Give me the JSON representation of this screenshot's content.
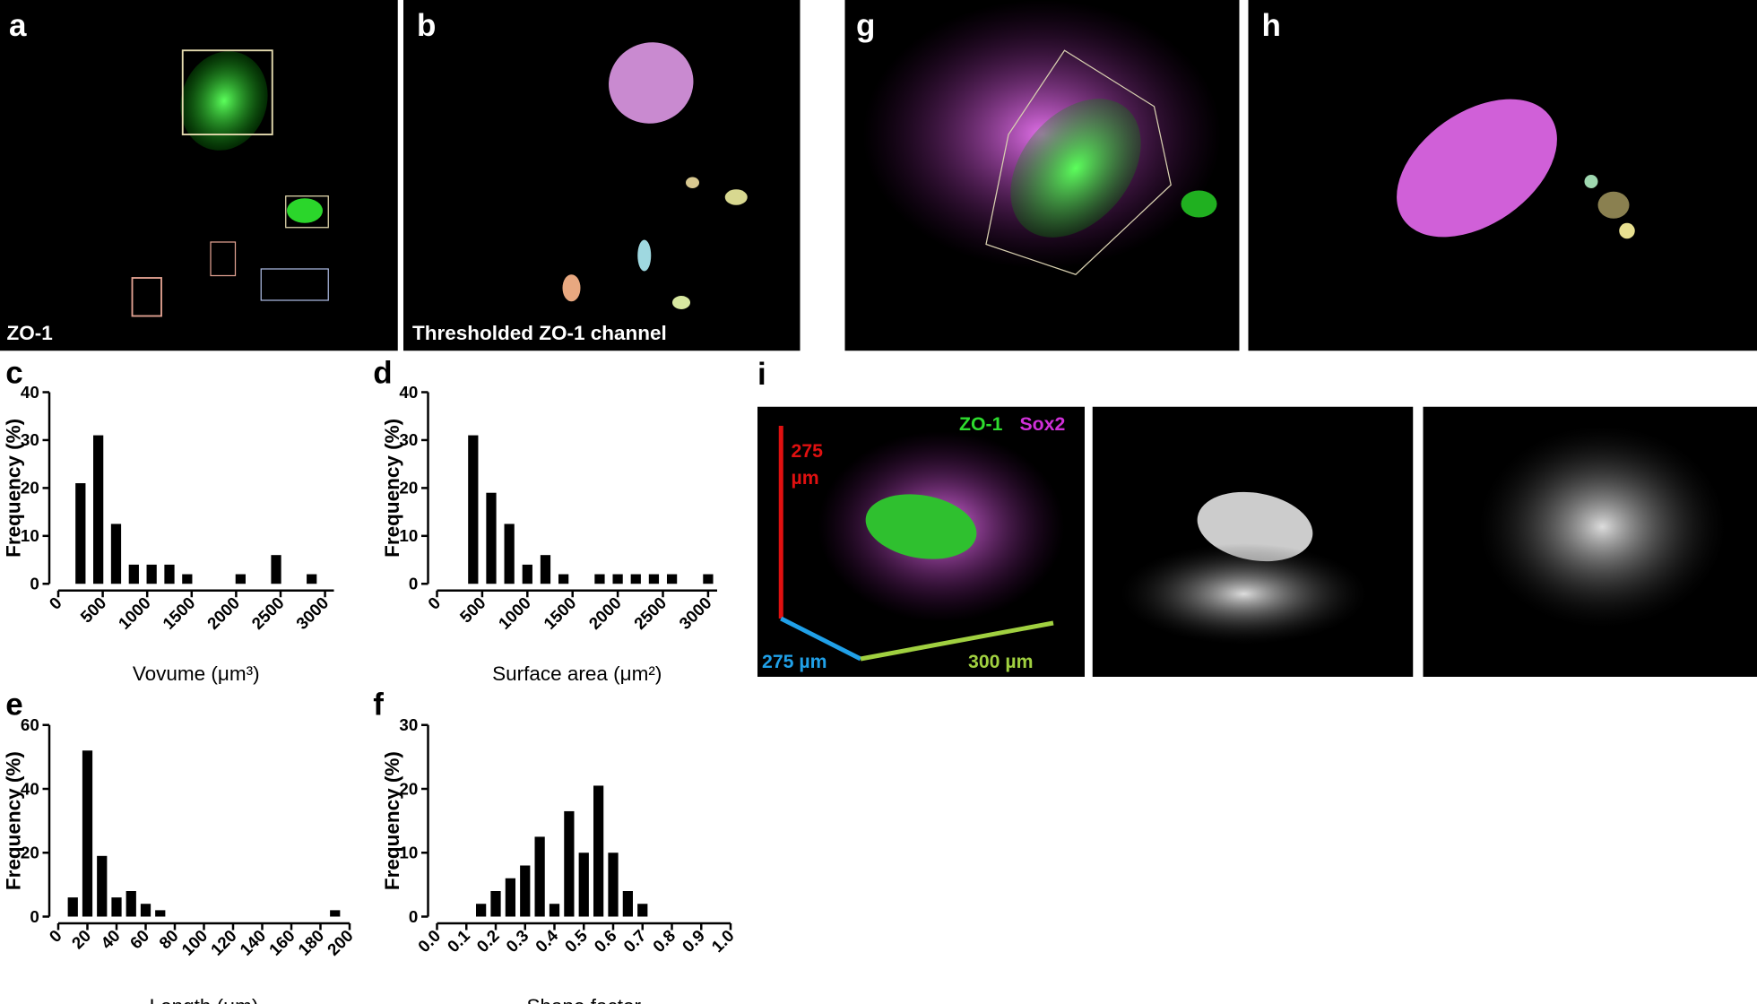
{
  "images": [
    {
      "label": "a",
      "caption": "ZO-1"
    },
    {
      "label": "b",
      "caption": "Thresholded ZO-1 channel"
    },
    {
      "label": "g"
    },
    {
      "label": "h"
    },
    {
      "label": "i",
      "channel_labels": [
        "ZO-1",
        "Sox2"
      ],
      "height_label": [
        "275",
        "µm"
      ],
      "depth_label": "275 µm",
      "width_label": "300 µm"
    }
  ],
  "chart_data": [
    {
      "type": "bar",
      "label": "c",
      "xlabel": "Vovume (μm³)",
      "ylabel": "Frequency (%)",
      "x": [
        250,
        450,
        650,
        850,
        1050,
        1250,
        1450,
        2050,
        2450,
        2850
      ],
      "values": [
        21,
        31,
        12.5,
        4,
        4,
        4,
        2,
        2,
        6,
        2
      ],
      "color": "#000000",
      "xlim": [
        0,
        3100
      ],
      "xticks": [
        0,
        500,
        1000,
        1500,
        2000,
        2500,
        3000
      ],
      "ylim": [
        0,
        40
      ],
      "yticks": [
        0,
        10,
        20,
        30,
        40
      ]
    },
    {
      "type": "bar",
      "label": "d",
      "xlabel": "Surface area (μm²)",
      "ylabel": "Frequency (%)",
      "x": [
        400,
        600,
        800,
        1000,
        1200,
        1400,
        1800,
        2000,
        2200,
        2400,
        2600,
        3000
      ],
      "values": [
        31,
        19,
        12.5,
        4,
        6,
        2,
        2,
        2,
        2,
        2,
        2,
        2
      ],
      "color": "#000000",
      "xlim": [
        0,
        3100
      ],
      "xticks": [
        0,
        500,
        1000,
        1500,
        2000,
        2500,
        3000
      ],
      "ylim": [
        0,
        40
      ],
      "yticks": [
        0,
        10,
        20,
        30,
        40
      ]
    },
    {
      "type": "bar",
      "label": "e",
      "xlabel": "Length (μm)",
      "ylabel": "Frequency (%)",
      "x": [
        10,
        20,
        30,
        40,
        50,
        60,
        70,
        190
      ],
      "values": [
        6,
        52,
        19,
        6,
        8,
        4,
        2,
        2
      ],
      "color": "#000000",
      "xlim": [
        0,
        200
      ],
      "xticks": [
        0,
        20,
        40,
        60,
        80,
        100,
        120,
        140,
        160,
        180,
        200
      ],
      "ylim": [
        0,
        60
      ],
      "yticks": [
        0,
        20,
        40,
        60
      ]
    },
    {
      "type": "bar",
      "label": "f",
      "xlabel": "Shape factor",
      "ylabel": "Frequency (%)",
      "x": [
        0.15,
        0.2,
        0.25,
        0.3,
        0.35,
        0.4,
        0.45,
        0.5,
        0.55,
        0.6,
        0.65,
        0.7
      ],
      "values": [
        2,
        4,
        6,
        8,
        12.5,
        2,
        16.5,
        10,
        20.5,
        10,
        4,
        2
      ],
      "color": "#000000",
      "xlim": [
        0,
        1
      ],
      "xticks": [
        {
          "value": 0,
          "label": "0.0"
        },
        0.1,
        0.2,
        0.3,
        0.4,
        0.5,
        0.6,
        0.7,
        0.8,
        0.9,
        {
          "value": 1,
          "label": "1.0"
        }
      ],
      "ylim": [
        0,
        30
      ],
      "yticks": [
        0,
        10,
        20,
        30
      ]
    }
  ]
}
